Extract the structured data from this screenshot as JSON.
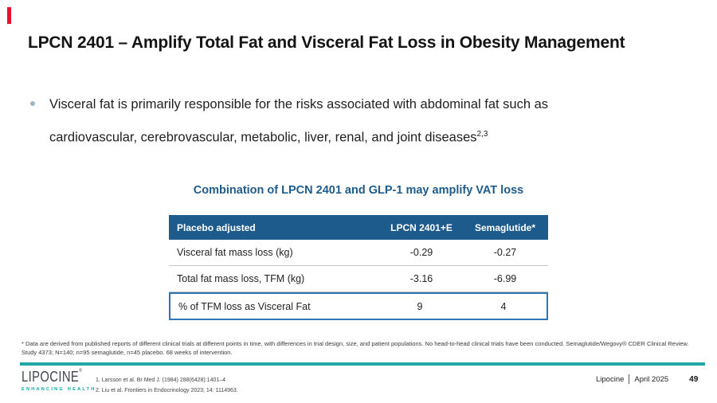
{
  "slide": {
    "accent_color": "#E8112D",
    "title": "LPCN 2401 – Amplify Total Fat and Visceral Fat Loss in Obesity Management",
    "bullet": {
      "line1": "Visceral fat is primarily responsible for the risks associated with abdominal fat such as",
      "line2": "cardiovascular, cerebrovascular, metabolic, liver, renal, and joint diseases",
      "superscript": "2,3"
    }
  },
  "table": {
    "title": "Combination of LPCN 2401 and GLP-1 may amplify VAT loss",
    "title_color": "#1F5C8B",
    "header_bg_color": "#1E5B8D",
    "highlight_border_color": "#2E75B6",
    "header": [
      "Placebo adjusted",
      "LPCN 2401+E",
      "Semaglutide*"
    ],
    "rows": [
      {
        "label": "Visceral fat mass loss (kg)",
        "lpcn": "-0.29",
        "sema": "-0.27"
      },
      {
        "label": "Total fat mass loss, TFM (kg)",
        "lpcn": "-3.16",
        "sema": "-6.99"
      },
      {
        "label": "% of TFM loss as Visceral Fat",
        "lpcn": "9",
        "sema": "4"
      }
    ]
  },
  "footnote": "* Data are derived from published reports of different clinical trials at different points in time, with differences in trial design, size, and patient populations. No head-to-head clinical trials have been conducted.  Semaglutide/Wegovy® CDER Clinical Review. Study 4373; N=140; n=95 semaglutide, n=45 placebo. 68 weeks of intervention.",
  "footer": {
    "divider_color": "#1FA8A4",
    "logo_text": "LIPOCINE",
    "logo_mark": "®",
    "logo_tagline": "ENHANCING HEALTH",
    "references": [
      "1. Larsson et al. Br Med J. (1984) 288(6428):1401–4",
      "2. Liu et al. Frontiers in Endocrinology 2023; 14: 1114963."
    ],
    "company": "Lipocine",
    "date": "April 2025",
    "page_number": "49"
  }
}
